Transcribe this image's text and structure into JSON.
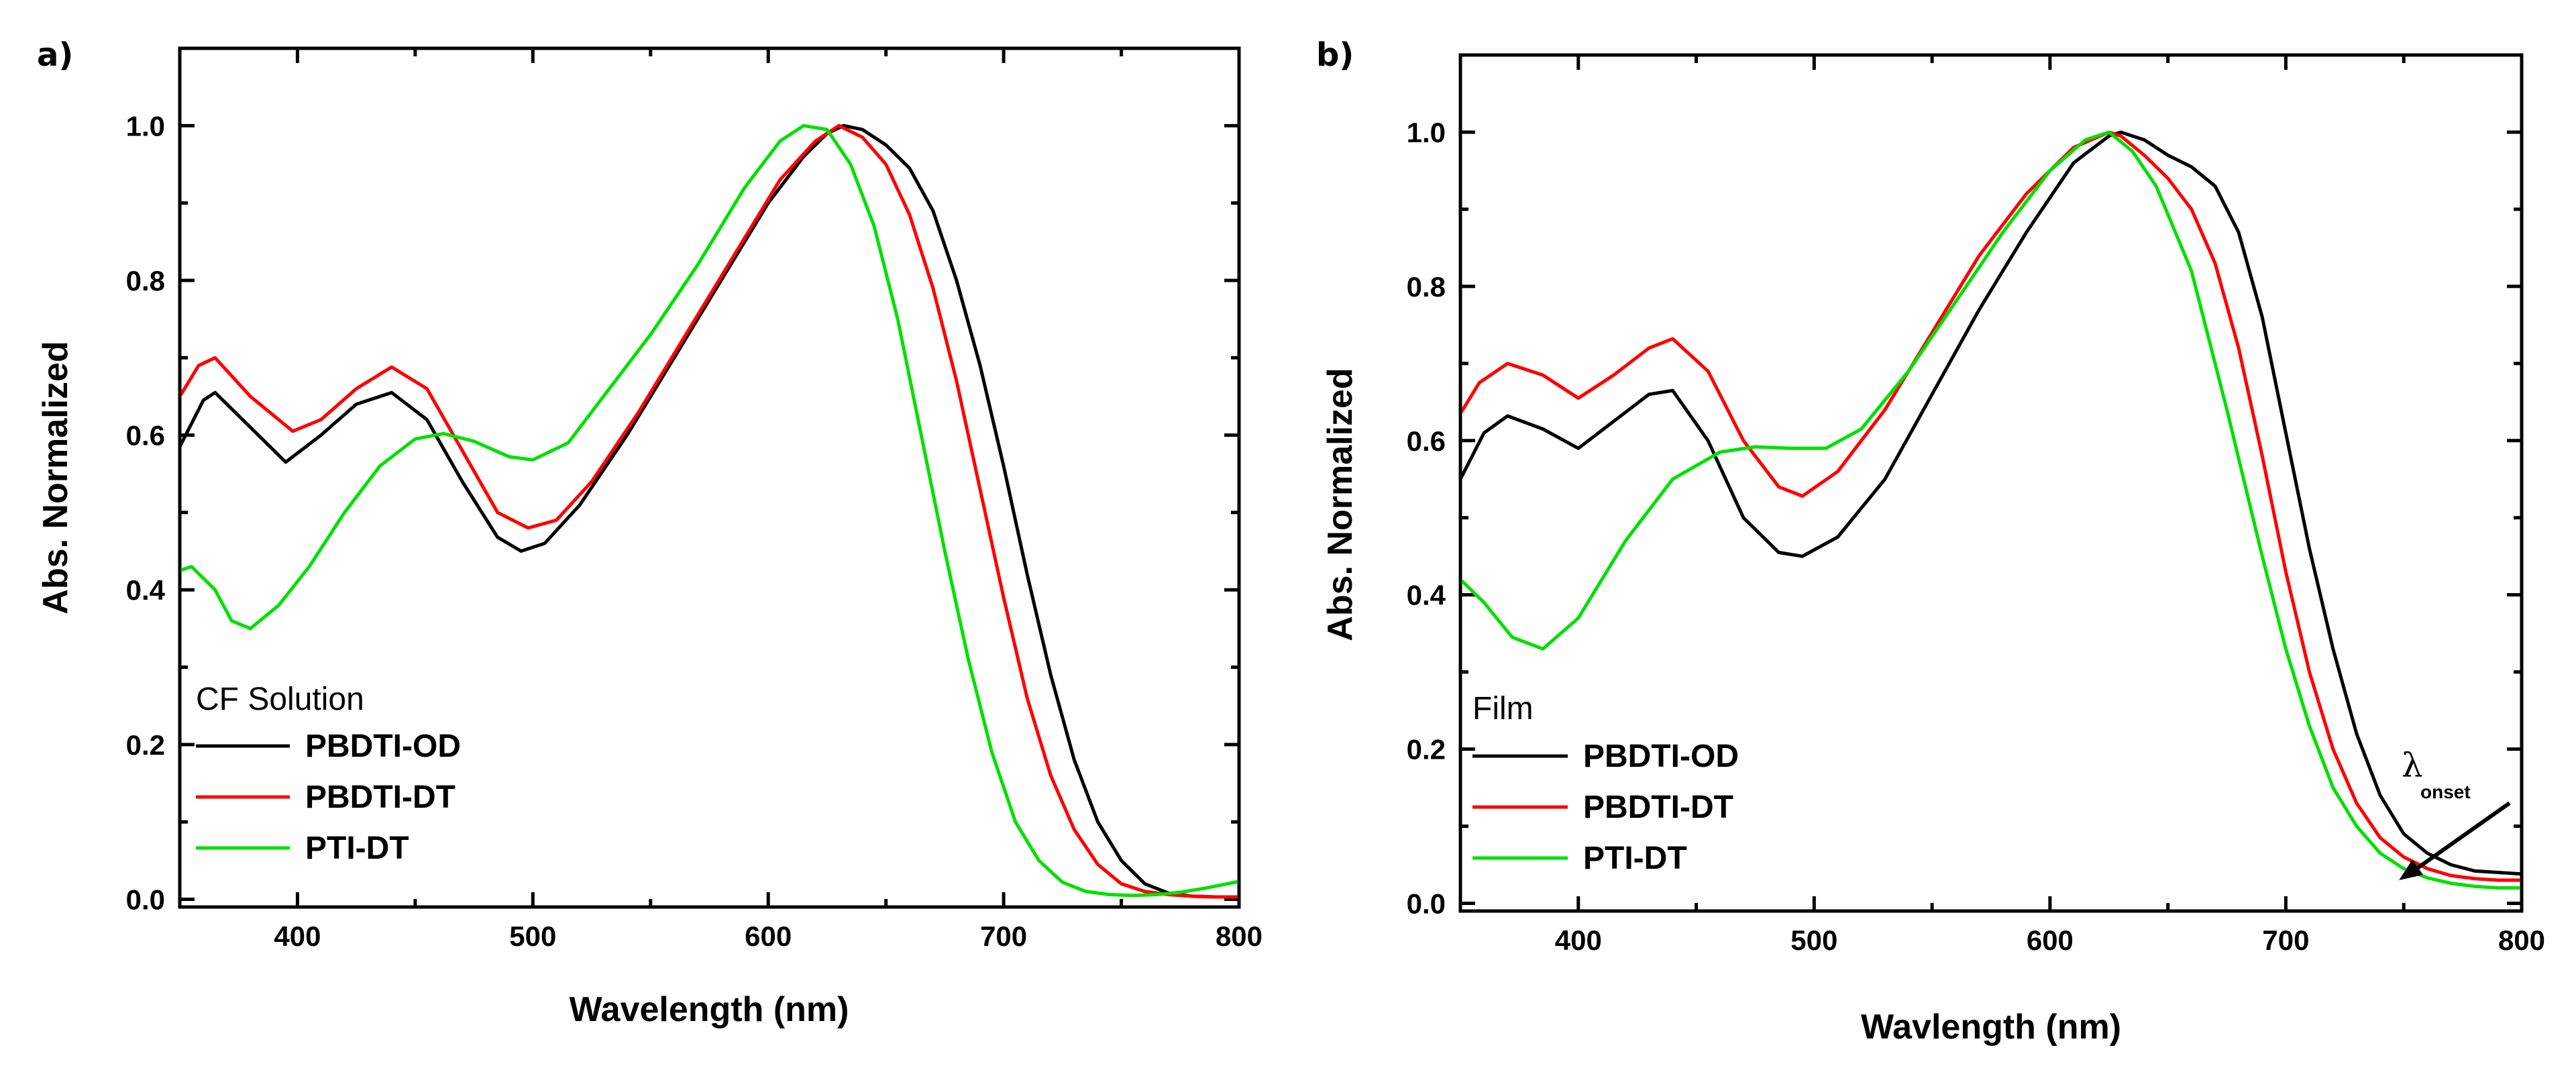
{
  "chart_data": [
    {
      "panel": "a)",
      "type": "line",
      "title": "",
      "xlabel": "Wavelength (nm)",
      "ylabel": "Abs. Normalized",
      "xlim": [
        350,
        800
      ],
      "ylim": [
        -0.01,
        1.1
      ],
      "xticks": [
        400,
        500,
        600,
        700,
        800
      ],
      "yticks": [
        0.0,
        0.2,
        0.4,
        0.6,
        0.8,
        1.0
      ],
      "legend_title": "CF Solution",
      "legend_position": "bottom-left",
      "series": [
        {
          "name": "PBDTI-OD",
          "color": "#000000",
          "x": [
            350,
            360,
            365,
            380,
            395,
            410,
            425,
            440,
            455,
            470,
            485,
            495,
            505,
            520,
            540,
            560,
            580,
            600,
            615,
            625,
            632,
            640,
            650,
            660,
            670,
            680,
            690,
            700,
            710,
            720,
            730,
            740,
            750,
            760,
            770,
            780,
            790,
            800
          ],
          "y": [
            0.585,
            0.645,
            0.655,
            0.61,
            0.565,
            0.6,
            0.64,
            0.655,
            0.62,
            0.54,
            0.468,
            0.45,
            0.46,
            0.51,
            0.6,
            0.7,
            0.8,
            0.9,
            0.96,
            0.99,
            1.0,
            0.995,
            0.975,
            0.945,
            0.89,
            0.8,
            0.69,
            0.56,
            0.42,
            0.29,
            0.18,
            0.1,
            0.05,
            0.02,
            0.008,
            0.004,
            0.003,
            0.003
          ]
        },
        {
          "name": "PBDTI-DT",
          "color": "#ff0000",
          "x": [
            350,
            358,
            365,
            380,
            398,
            410,
            425,
            440,
            455,
            470,
            485,
            498,
            510,
            525,
            545,
            565,
            585,
            605,
            620,
            630,
            640,
            650,
            660,
            670,
            680,
            690,
            700,
            710,
            720,
            730,
            740,
            750,
            760,
            770,
            780,
            790,
            800
          ],
          "y": [
            0.65,
            0.69,
            0.7,
            0.65,
            0.605,
            0.62,
            0.66,
            0.688,
            0.66,
            0.58,
            0.5,
            0.48,
            0.49,
            0.54,
            0.63,
            0.73,
            0.83,
            0.93,
            0.98,
            1.0,
            0.985,
            0.95,
            0.885,
            0.79,
            0.67,
            0.53,
            0.39,
            0.26,
            0.16,
            0.09,
            0.045,
            0.02,
            0.01,
            0.006,
            0.004,
            0.003,
            0.003
          ]
        },
        {
          "name": "PTI-DT",
          "color": "#00e000",
          "x": [
            350,
            355,
            365,
            372,
            380,
            392,
            405,
            420,
            435,
            450,
            462,
            475,
            490,
            500,
            515,
            530,
            550,
            570,
            590,
            605,
            615,
            625,
            635,
            645,
            655,
            665,
            675,
            685,
            695,
            705,
            715,
            725,
            735,
            745,
            755,
            765,
            775,
            785,
            795,
            800
          ],
          "y": [
            0.425,
            0.43,
            0.4,
            0.36,
            0.35,
            0.38,
            0.43,
            0.5,
            0.56,
            0.595,
            0.602,
            0.592,
            0.572,
            0.568,
            0.59,
            0.65,
            0.73,
            0.82,
            0.92,
            0.98,
            1.0,
            0.995,
            0.95,
            0.87,
            0.75,
            0.6,
            0.45,
            0.31,
            0.19,
            0.1,
            0.05,
            0.022,
            0.01,
            0.006,
            0.005,
            0.006,
            0.009,
            0.014,
            0.02,
            0.023
          ]
        }
      ]
    },
    {
      "panel": "b)",
      "type": "line",
      "title": "",
      "xlabel": "Wavlength (nm)",
      "ylabel": "Abs. Normalized",
      "xlim": [
        350,
        800
      ],
      "ylim": [
        -0.01,
        1.1
      ],
      "xticks": [
        400,
        500,
        600,
        700,
        800
      ],
      "yticks": [
        0.0,
        0.2,
        0.4,
        0.6,
        0.8,
        1.0
      ],
      "legend_title": "Film",
      "legend_position": "bottom-left",
      "annotation": {
        "text": "λ",
        "subscript": "onset",
        "arrow_from": [
          800,
          0.13
        ],
        "arrow_to": [
          748,
          0.03
        ]
      },
      "series": [
        {
          "name": "PBDTI-OD",
          "color": "#000000",
          "x": [
            350,
            360,
            370,
            385,
            400,
            415,
            430,
            440,
            455,
            470,
            485,
            495,
            510,
            530,
            550,
            570,
            590,
            610,
            625,
            630,
            640,
            650,
            660,
            670,
            680,
            690,
            700,
            710,
            720,
            730,
            740,
            750,
            760,
            770,
            780,
            790,
            800
          ],
          "y": [
            0.55,
            0.61,
            0.632,
            0.615,
            0.59,
            0.625,
            0.66,
            0.665,
            0.6,
            0.5,
            0.455,
            0.45,
            0.475,
            0.55,
            0.66,
            0.77,
            0.87,
            0.96,
            0.995,
            1.0,
            0.99,
            0.97,
            0.955,
            0.93,
            0.87,
            0.76,
            0.61,
            0.46,
            0.33,
            0.22,
            0.14,
            0.09,
            0.065,
            0.05,
            0.042,
            0.04,
            0.038
          ]
        },
        {
          "name": "PBDTI-DT",
          "color": "#ff0000",
          "x": [
            350,
            358,
            370,
            385,
            400,
            415,
            430,
            440,
            455,
            470,
            485,
            495,
            510,
            530,
            550,
            570,
            590,
            610,
            625,
            630,
            640,
            650,
            660,
            670,
            680,
            690,
            700,
            710,
            720,
            730,
            740,
            750,
            760,
            770,
            780,
            790,
            800
          ],
          "y": [
            0.635,
            0.675,
            0.7,
            0.685,
            0.655,
            0.685,
            0.72,
            0.732,
            0.69,
            0.6,
            0.54,
            0.528,
            0.56,
            0.64,
            0.74,
            0.84,
            0.92,
            0.98,
            1.0,
            0.995,
            0.97,
            0.94,
            0.9,
            0.83,
            0.72,
            0.58,
            0.43,
            0.3,
            0.2,
            0.13,
            0.085,
            0.06,
            0.045,
            0.036,
            0.032,
            0.03,
            0.03
          ]
        },
        {
          "name": "PTI-DT",
          "color": "#00e000",
          "x": [
            350,
            360,
            372,
            385,
            400,
            420,
            440,
            460,
            475,
            490,
            505,
            520,
            540,
            560,
            580,
            600,
            615,
            625,
            635,
            645,
            660,
            675,
            690,
            700,
            710,
            720,
            730,
            740,
            750,
            760,
            770,
            780,
            790,
            800
          ],
          "y": [
            0.42,
            0.39,
            0.345,
            0.33,
            0.37,
            0.47,
            0.55,
            0.585,
            0.592,
            0.59,
            0.59,
            0.615,
            0.69,
            0.78,
            0.87,
            0.95,
            0.99,
            1.0,
            0.975,
            0.93,
            0.82,
            0.64,
            0.45,
            0.33,
            0.23,
            0.15,
            0.1,
            0.065,
            0.045,
            0.033,
            0.026,
            0.022,
            0.02,
            0.02
          ]
        }
      ]
    }
  ]
}
